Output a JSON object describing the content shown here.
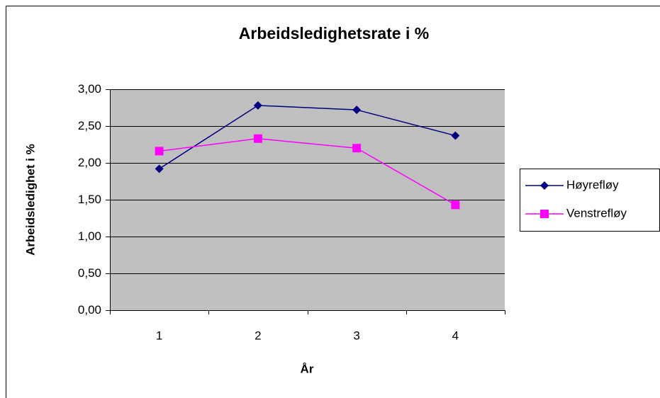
{
  "chart_data": {
    "type": "line",
    "title": "Arbeidsledighetsrate i %",
    "x_label": "År",
    "y_label": "Arbeidsledighet i %",
    "categories": [
      "1",
      "2",
      "3",
      "4"
    ],
    "series": [
      {
        "name": "Høyrefløy",
        "color": "#000080",
        "marker": "diamond",
        "values": [
          1.92,
          2.78,
          2.72,
          2.37
        ]
      },
      {
        "name": "Venstrefløy",
        "color": "#ff00ff",
        "marker": "square",
        "values": [
          2.16,
          2.33,
          2.2,
          1.43
        ]
      }
    ],
    "ylim": [
      0,
      3
    ],
    "yticks": [
      {
        "value": 0,
        "label": "0,00"
      },
      {
        "value": 0.5,
        "label": "0,50"
      },
      {
        "value": 1,
        "label": "1,00"
      },
      {
        "value": 1.5,
        "label": "1,50"
      },
      {
        "value": 2,
        "label": "2,00"
      },
      {
        "value": 2.5,
        "label": "2,50"
      },
      {
        "value": 3,
        "label": "3,00"
      }
    ],
    "grid": true,
    "legend": "right",
    "plot_background": "#c0c0c0"
  }
}
